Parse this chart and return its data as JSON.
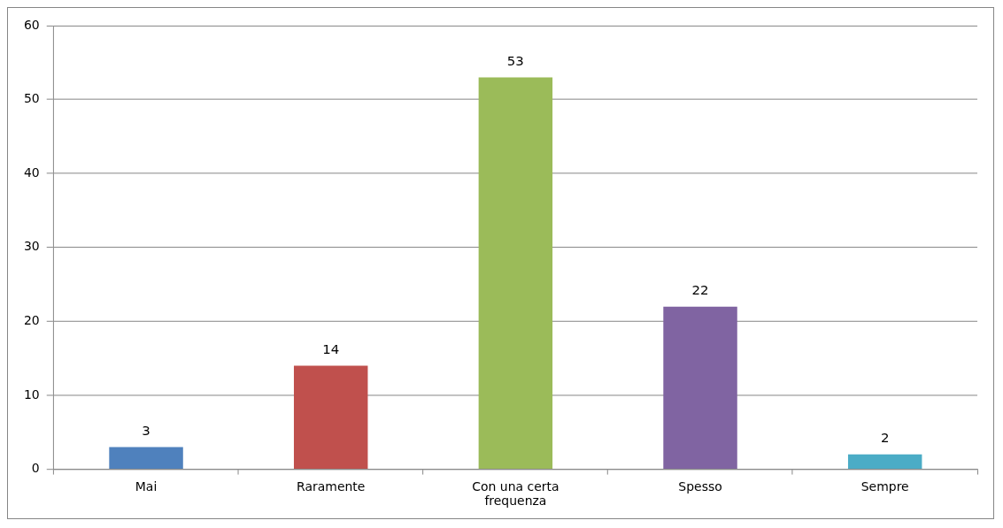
{
  "chart_data": {
    "type": "bar",
    "categories": [
      "Mai",
      "Raramente",
      "Con una certa frequenza",
      "Spesso",
      "Sempre"
    ],
    "values": [
      3,
      14,
      53,
      22,
      2
    ],
    "colors": [
      "#4f81bd",
      "#c0504d",
      "#9bbb59",
      "#8064a2",
      "#4bacc6"
    ],
    "ylim": [
      0,
      60
    ],
    "yticks": [
      0,
      10,
      20,
      30,
      40,
      50,
      60
    ],
    "grid": "y",
    "data_labels": true,
    "legend": false
  }
}
